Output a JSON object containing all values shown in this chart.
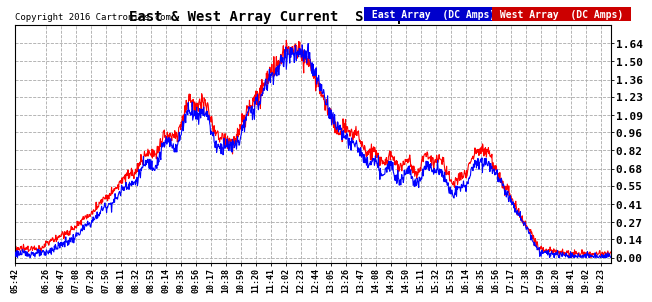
{
  "title": "East & West Array Current  Sat Apr 30  19:38",
  "copyright": "Copyright 2016 Cartronics.com",
  "east_label": "East Array  (DC Amps)",
  "west_label": "West Array  (DC Amps)",
  "east_color": "#0000ff",
  "west_color": "#ff0000",
  "legend_east_bg": "#0000cc",
  "legend_west_bg": "#cc0000",
  "background_color": "#ffffff",
  "grid_color": "#aaaaaa",
  "ylim": [
    -0.04,
    1.78
  ],
  "yticks": [
    0.0,
    0.14,
    0.27,
    0.41,
    0.55,
    0.68,
    0.82,
    0.96,
    1.09,
    1.23,
    1.36,
    1.5,
    1.64
  ],
  "xtick_labels": [
    "05:42",
    "06:26",
    "06:47",
    "07:08",
    "07:29",
    "07:50",
    "08:11",
    "08:32",
    "08:53",
    "09:14",
    "09:35",
    "09:56",
    "10:17",
    "10:38",
    "10:59",
    "11:20",
    "11:41",
    "12:02",
    "12:23",
    "12:44",
    "13:05",
    "13:26",
    "13:47",
    "14:08",
    "14:29",
    "14:50",
    "15:11",
    "15:32",
    "15:53",
    "16:14",
    "16:35",
    "16:56",
    "17:17",
    "17:38",
    "17:59",
    "18:20",
    "18:41",
    "19:02",
    "19:23"
  ],
  "start_time": "05:42",
  "end_time": "19:38"
}
